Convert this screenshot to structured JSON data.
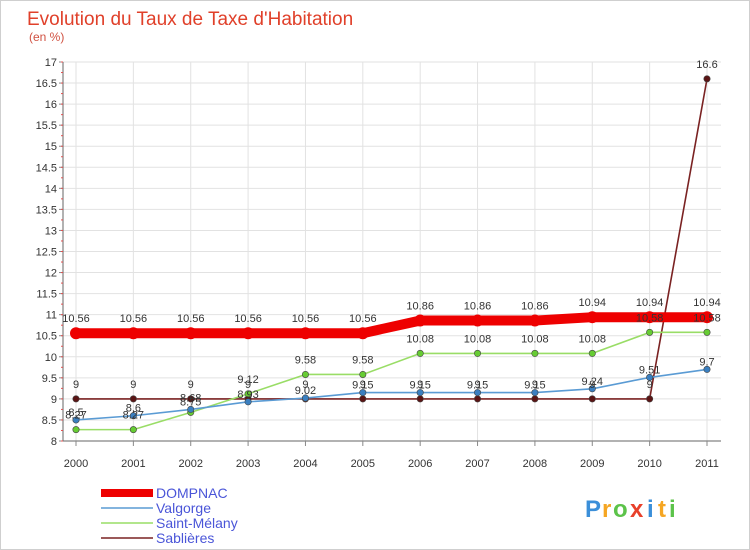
{
  "chart_data": {
    "type": "line",
    "title": "Evolution du Taux de Taxe d'Habitation",
    "subtitle": "(en %)",
    "xlabel": "",
    "ylabel": "",
    "x": [
      "2000",
      "2001",
      "2002",
      "2003",
      "2004",
      "2005",
      "2006",
      "2007",
      "2008",
      "2009",
      "2010",
      "2011"
    ],
    "ylim": [
      8,
      17
    ],
    "yticks": [
      "8",
      "8.5",
      "9",
      "9.5",
      "10",
      "10.5",
      "11",
      "11.5",
      "12",
      "12.5",
      "13",
      "13.5",
      "14",
      "14.5",
      "15",
      "15.5",
      "16",
      "16.5",
      "17"
    ],
    "grid": true,
    "series": [
      {
        "name": "DOMPNAC",
        "color": "#ee0000",
        "values": [
          10.56,
          10.56,
          10.56,
          10.56,
          10.56,
          10.56,
          10.86,
          10.86,
          10.86,
          10.94,
          10.94,
          10.94
        ],
        "labels": [
          "10.56",
          "10.56",
          "10.56",
          "10.56",
          "10.56",
          "10.56",
          "10.86",
          "10.86",
          "10.86",
          "10.94",
          "10.94",
          "10.94"
        ]
      },
      {
        "name": "Valgorge",
        "color": "#5a9bd4",
        "values": [
          8.5,
          8.6,
          8.75,
          8.93,
          9.02,
          9.15,
          9.15,
          9.15,
          9.15,
          9.24,
          9.51,
          9.7
        ],
        "labels": [
          "8.5",
          "8.6",
          "8.75",
          "8.93",
          "9.02",
          "9.15",
          "9.15",
          "9.15",
          "9.15",
          "9.24",
          "9.51",
          "9.7"
        ]
      },
      {
        "name": "Saint-Mélany",
        "color": "#99dd66",
        "values": [
          8.27,
          8.27,
          8.68,
          9.12,
          9.58,
          9.58,
          10.08,
          10.08,
          10.08,
          10.08,
          10.58,
          10.58
        ],
        "labels": [
          "8.27",
          "8.27",
          "8.68",
          "9.12",
          "9.58",
          "9.58",
          "10.08",
          "10.08",
          "10.08",
          "10.08",
          "10.58",
          "10.58"
        ]
      },
      {
        "name": "Sablières",
        "color": "#7a2222",
        "values": [
          9,
          9,
          9,
          9,
          9,
          9,
          9,
          9,
          9,
          9,
          9,
          16.6
        ],
        "labels": [
          "9",
          "9",
          "9",
          "9",
          "9",
          "9",
          "9",
          "9",
          "9",
          "9",
          "9",
          "16.6"
        ]
      }
    ],
    "legend_position": "bottom-left"
  },
  "logo": {
    "letters": [
      "P",
      "r",
      "o",
      "x",
      "i",
      "t",
      "i"
    ],
    "colors": [
      "#3b8fd9",
      "#f5a623",
      "#5cc34a",
      "#e8402a",
      "#3b8fd9",
      "#f5a623",
      "#5cc34a"
    ]
  }
}
